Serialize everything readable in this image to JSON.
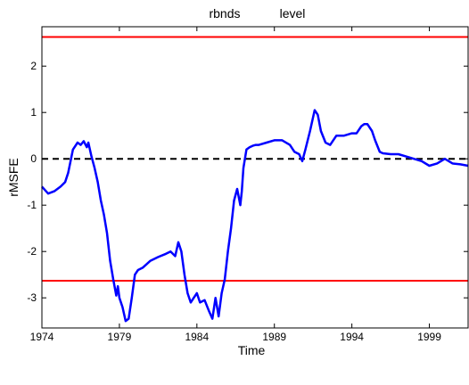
{
  "chart_data": {
    "type": "line",
    "title_left": "rbnds",
    "title_right": "level",
    "xlabel": "Time",
    "ylabel": "rMSFE",
    "xlim": [
      1974,
      2001.5
    ],
    "ylim": [
      -3.65,
      2.85
    ],
    "xticks": [
      1974,
      1979,
      1984,
      1989,
      1994,
      1999
    ],
    "yticks": [
      -3,
      -2,
      -1,
      0,
      1,
      2
    ],
    "grid": false,
    "reference_lines": [
      {
        "kind": "upper-bound",
        "y": 2.63,
        "color": "#ff0000",
        "style": "solid"
      },
      {
        "kind": "lower-bound",
        "y": -2.63,
        "color": "#ff0000",
        "style": "solid"
      },
      {
        "kind": "zero",
        "y": 0,
        "color": "#000000",
        "style": "dashed"
      }
    ],
    "series": [
      {
        "color": "#0000ff",
        "x": [
          1974.0,
          1974.4,
          1974.8,
          1975.2,
          1975.5,
          1975.7,
          1976.0,
          1976.3,
          1976.5,
          1976.7,
          1976.9,
          1977.0,
          1977.2,
          1977.4,
          1977.6,
          1977.8,
          1978.0,
          1978.2,
          1978.4,
          1978.6,
          1978.8,
          1978.9,
          1979.0,
          1979.2,
          1979.4,
          1979.6,
          1979.8,
          1980.0,
          1980.2,
          1980.5,
          1981.0,
          1981.5,
          1982.0,
          1982.3,
          1982.6,
          1982.8,
          1983.0,
          1983.2,
          1983.4,
          1983.6,
          1983.8,
          1984.0,
          1984.2,
          1984.5,
          1984.8,
          1985.0,
          1985.2,
          1985.4,
          1985.6,
          1985.8,
          1986.0,
          1986.2,
          1986.4,
          1986.6,
          1986.8,
          1986.9,
          1987.0,
          1987.2,
          1987.4,
          1987.6,
          1987.8,
          1988.0,
          1988.5,
          1989.0,
          1989.5,
          1990.0,
          1990.3,
          1990.6,
          1990.8,
          1991.0,
          1991.3,
          1991.6,
          1991.8,
          1992.0,
          1992.3,
          1992.6,
          1993.0,
          1993.5,
          1994.0,
          1994.3,
          1994.6,
          1994.8,
          1995.0,
          1995.3,
          1995.5,
          1995.8,
          1996.0,
          1996.5,
          1997.0,
          1997.5,
          1998.0,
          1998.5,
          1999.0,
          1999.5,
          2000.0,
          2000.5,
          2001.0,
          2001.5
        ],
        "y": [
          -0.6,
          -0.75,
          -0.7,
          -0.6,
          -0.5,
          -0.3,
          0.2,
          0.35,
          0.3,
          0.38,
          0.25,
          0.35,
          0.05,
          -0.2,
          -0.5,
          -0.9,
          -1.2,
          -1.6,
          -2.2,
          -2.6,
          -2.95,
          -2.75,
          -3.0,
          -3.2,
          -3.5,
          -3.45,
          -3.0,
          -2.5,
          -2.4,
          -2.35,
          -2.2,
          -2.12,
          -2.05,
          -2.0,
          -2.1,
          -1.8,
          -2.0,
          -2.5,
          -2.9,
          -3.1,
          -3.0,
          -2.9,
          -3.1,
          -3.05,
          -3.3,
          -3.45,
          -3.0,
          -3.4,
          -2.9,
          -2.6,
          -2.0,
          -1.5,
          -0.9,
          -0.65,
          -1.0,
          -0.7,
          -0.2,
          0.2,
          0.25,
          0.28,
          0.3,
          0.3,
          0.35,
          0.4,
          0.4,
          0.3,
          0.15,
          0.1,
          -0.05,
          0.2,
          0.6,
          1.05,
          0.95,
          0.6,
          0.35,
          0.3,
          0.5,
          0.5,
          0.55,
          0.55,
          0.7,
          0.75,
          0.75,
          0.6,
          0.4,
          0.15,
          0.12,
          0.1,
          0.1,
          0.05,
          0.0,
          -0.05,
          -0.15,
          -0.1,
          0.0,
          -0.1,
          -0.12,
          -0.15
        ]
      }
    ]
  }
}
